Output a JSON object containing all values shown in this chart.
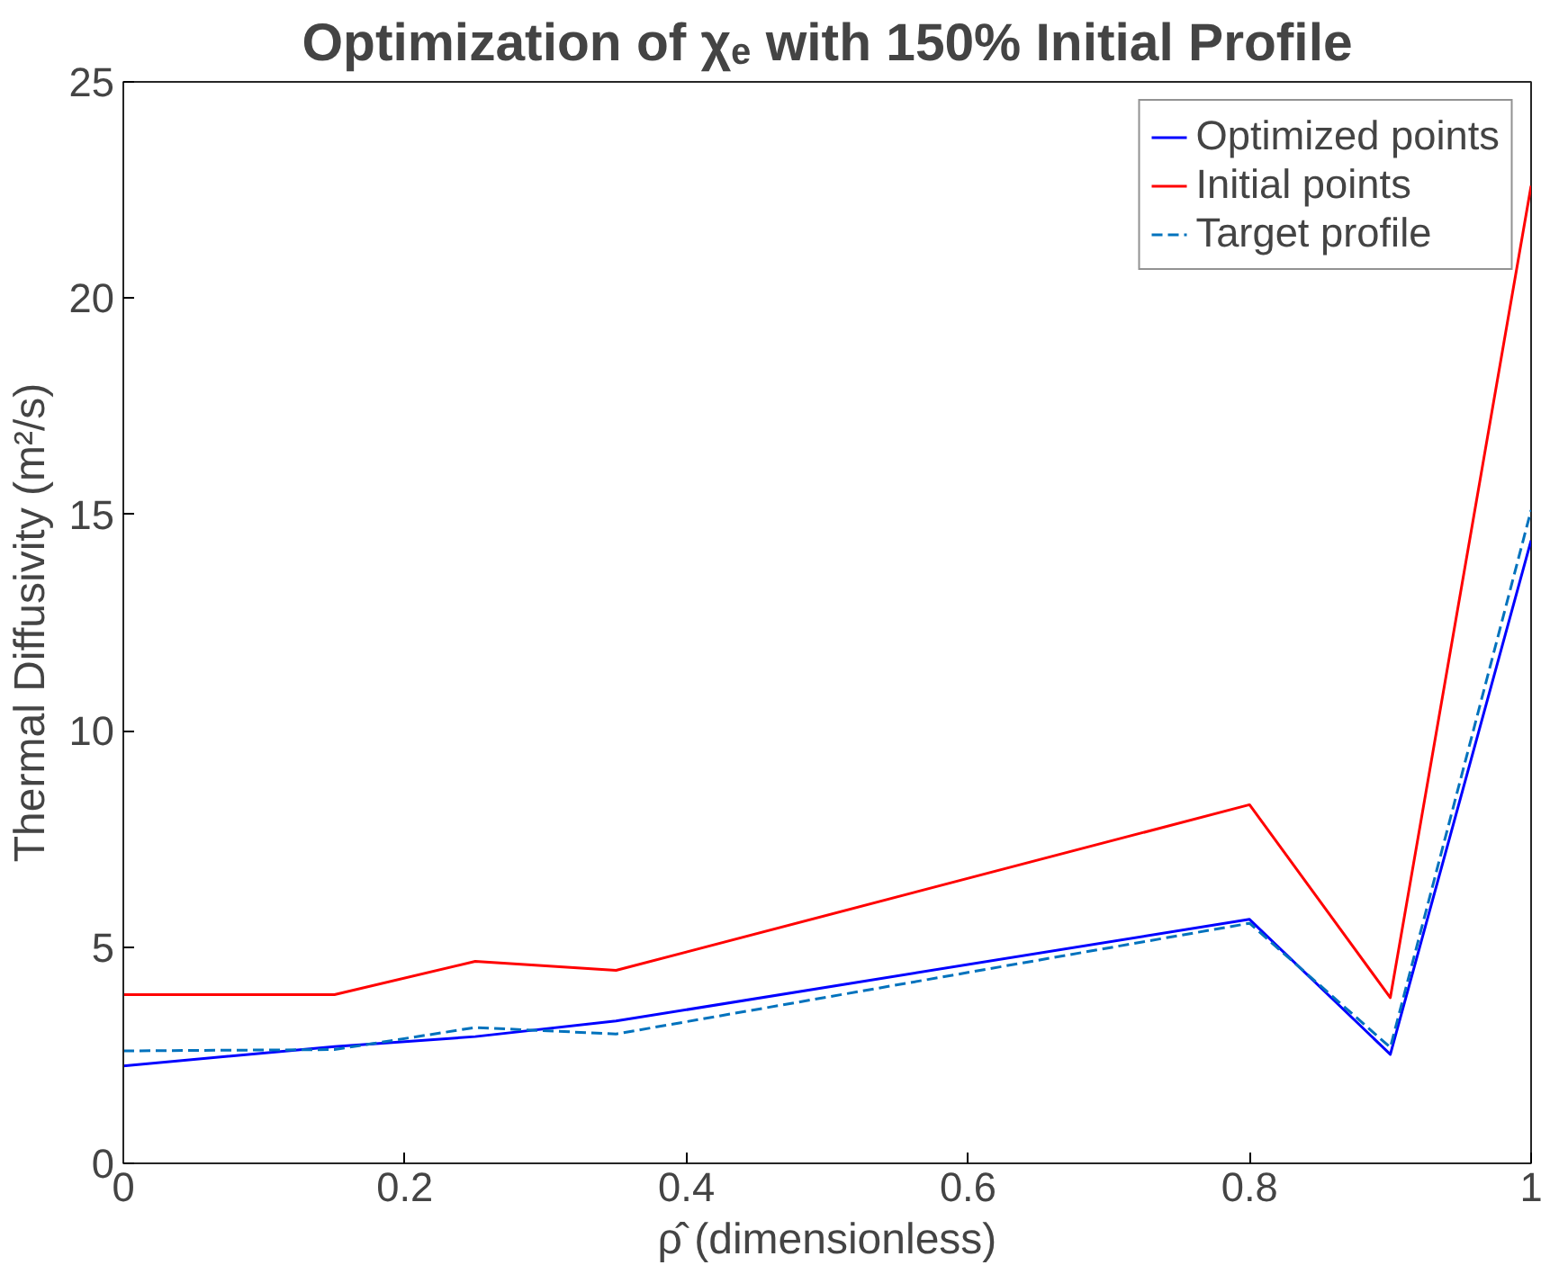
{
  "chart_data": {
    "type": "line",
    "title": "Optimization of χₑ with 150% Initial Profile",
    "xlabel": "ρ̂ (dimensionless)",
    "ylabel": "Thermal Diffusivity (m²/s)",
    "x": [
      0,
      0.15,
      0.25,
      0.35,
      0.8,
      0.9,
      1
    ],
    "series": [
      {
        "name": "Optimized points",
        "color": "#0000ff",
        "values": [
          2.25,
          2.7,
          2.93,
          3.29,
          5.64,
          2.52,
          14.4
        ]
      },
      {
        "name": "Initial points",
        "color": "#ff0000",
        "values": [
          3.9,
          3.9,
          4.67,
          4.46,
          8.29,
          3.83,
          22.6
        ]
      },
      {
        "name": "Target profile",
        "color": "#0072bd",
        "line_style": "dashed",
        "values": [
          2.6,
          2.63,
          3.14,
          2.99,
          5.55,
          2.68,
          15.1
        ]
      }
    ],
    "xlim": [
      0,
      1
    ],
    "ylim": [
      0,
      25
    ],
    "xticks": [
      0,
      0.2,
      0.4,
      0.6,
      0.8,
      1
    ],
    "yticks": [
      0,
      5,
      10,
      15,
      20,
      25
    ],
    "grid": false,
    "legend": "top right"
  }
}
